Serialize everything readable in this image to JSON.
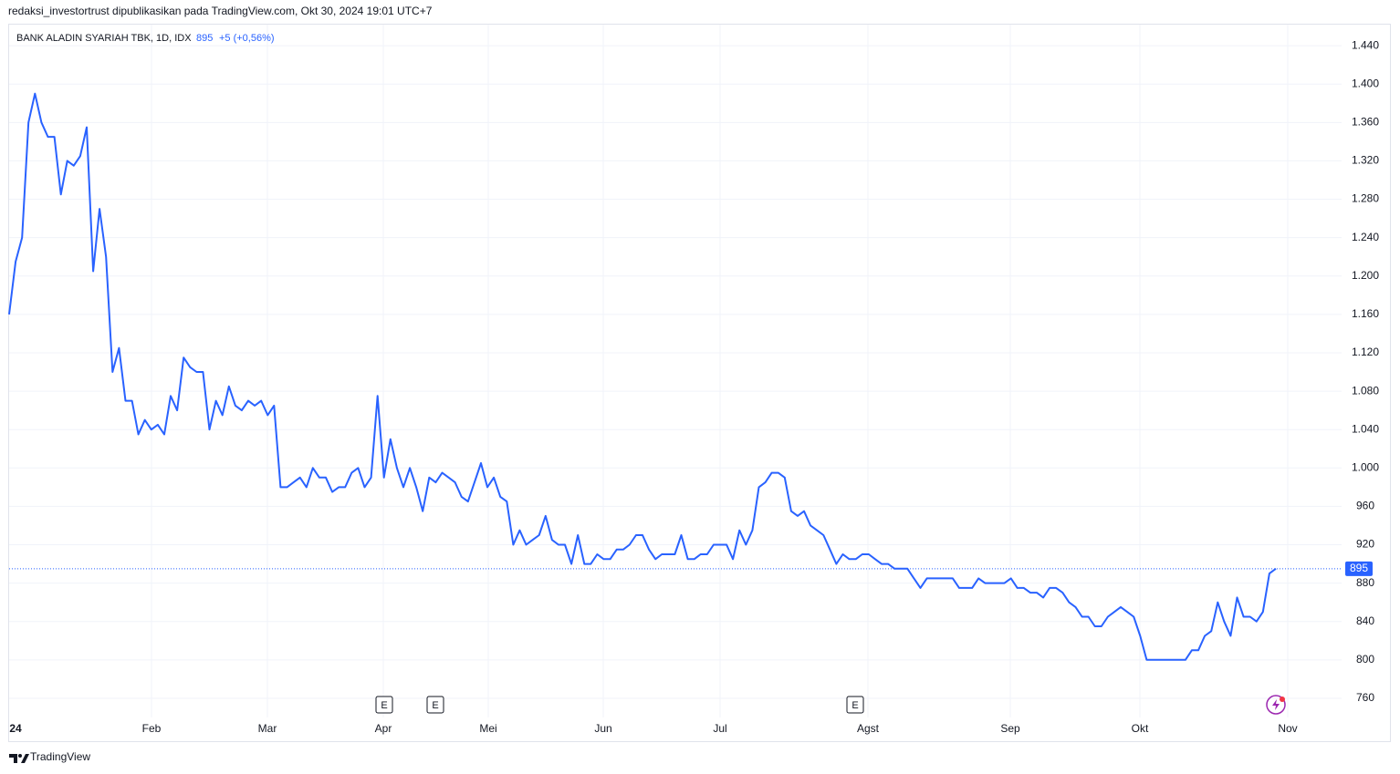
{
  "header": "redaksi_investortrust dipublikasikan pada TradingView.com, Okt 30, 2024 19:01 UTC+7",
  "footer": "TradingView",
  "chart_data": {
    "type": "line",
    "title": "BANK ALADIN SYARIAH TBK, 1D, IDX",
    "last_price": 895,
    "change": "+5 (+0,56%)",
    "color": "#2962ff",
    "grid": true,
    "xticks": [
      "24",
      "Feb",
      "Mar",
      "Apr",
      "Mei",
      "Jun",
      "Jul",
      "Agst",
      "Sep",
      "Okt",
      "Nov"
    ],
    "events": [
      "E",
      "E",
      "E"
    ],
    "ylim": [
      740,
      1461
    ],
    "yticks": [
      760,
      800,
      840,
      880,
      920,
      960,
      {
        "value": 1000,
        "label": "1.000"
      },
      {
        "value": 1040,
        "label": "1.040"
      },
      {
        "value": 1080,
        "label": "1.080"
      },
      {
        "value": 1120,
        "label": "1.120"
      },
      {
        "value": 1160,
        "label": "1.160"
      },
      {
        "value": 1200,
        "label": "1.200"
      },
      {
        "value": 1240,
        "label": "1.240"
      },
      {
        "value": 1280,
        "label": "1.280"
      },
      {
        "value": 1320,
        "label": "1.320"
      },
      {
        "value": 1360,
        "label": "1.360"
      },
      {
        "value": 1400,
        "label": "1.400"
      },
      {
        "value": 1440,
        "label": "1.440"
      }
    ],
    "values": [
      1160,
      1215,
      1240,
      1360,
      1390,
      1360,
      1345,
      1345,
      1285,
      1320,
      1315,
      1325,
      1355,
      1205,
      1270,
      1220,
      1100,
      1125,
      1070,
      1070,
      1035,
      1050,
      1040,
      1045,
      1035,
      1075,
      1060,
      1115,
      1105,
      1100,
      1100,
      1040,
      1070,
      1055,
      1085,
      1065,
      1060,
      1070,
      1065,
      1070,
      1055,
      1065,
      980,
      980,
      985,
      990,
      980,
      1000,
      990,
      990,
      975,
      980,
      980,
      995,
      1000,
      980,
      990,
      1075,
      990,
      1030,
      1000,
      980,
      1000,
      980,
      955,
      990,
      985,
      995,
      990,
      985,
      970,
      965,
      985,
      1005,
      980,
      990,
      970,
      965,
      920,
      935,
      920,
      925,
      930,
      950,
      925,
      920,
      920,
      900,
      930,
      900,
      900,
      910,
      905,
      905,
      915,
      915,
      920,
      930,
      930,
      915,
      905,
      910,
      910,
      910,
      930,
      905,
      905,
      910,
      910,
      920,
      920,
      920,
      905,
      935,
      920,
      935,
      980,
      985,
      995,
      995,
      990,
      955,
      950,
      955,
      940,
      935,
      930,
      915,
      900,
      910,
      905,
      905,
      910,
      910,
      905,
      900,
      900,
      895,
      895,
      895,
      885,
      875,
      885,
      885,
      885,
      885,
      885,
      875,
      875,
      875,
      885,
      880,
      880,
      880,
      880,
      885,
      875,
      875,
      870,
      870,
      865,
      875,
      875,
      870,
      860,
      855,
      845,
      845,
      835,
      835,
      845,
      850,
      855,
      850,
      845,
      825,
      800,
      800,
      800,
      800,
      800,
      800,
      800,
      810,
      810,
      825,
      830,
      860,
      840,
      825,
      865,
      845,
      845,
      840,
      850,
      890,
      895
    ]
  }
}
